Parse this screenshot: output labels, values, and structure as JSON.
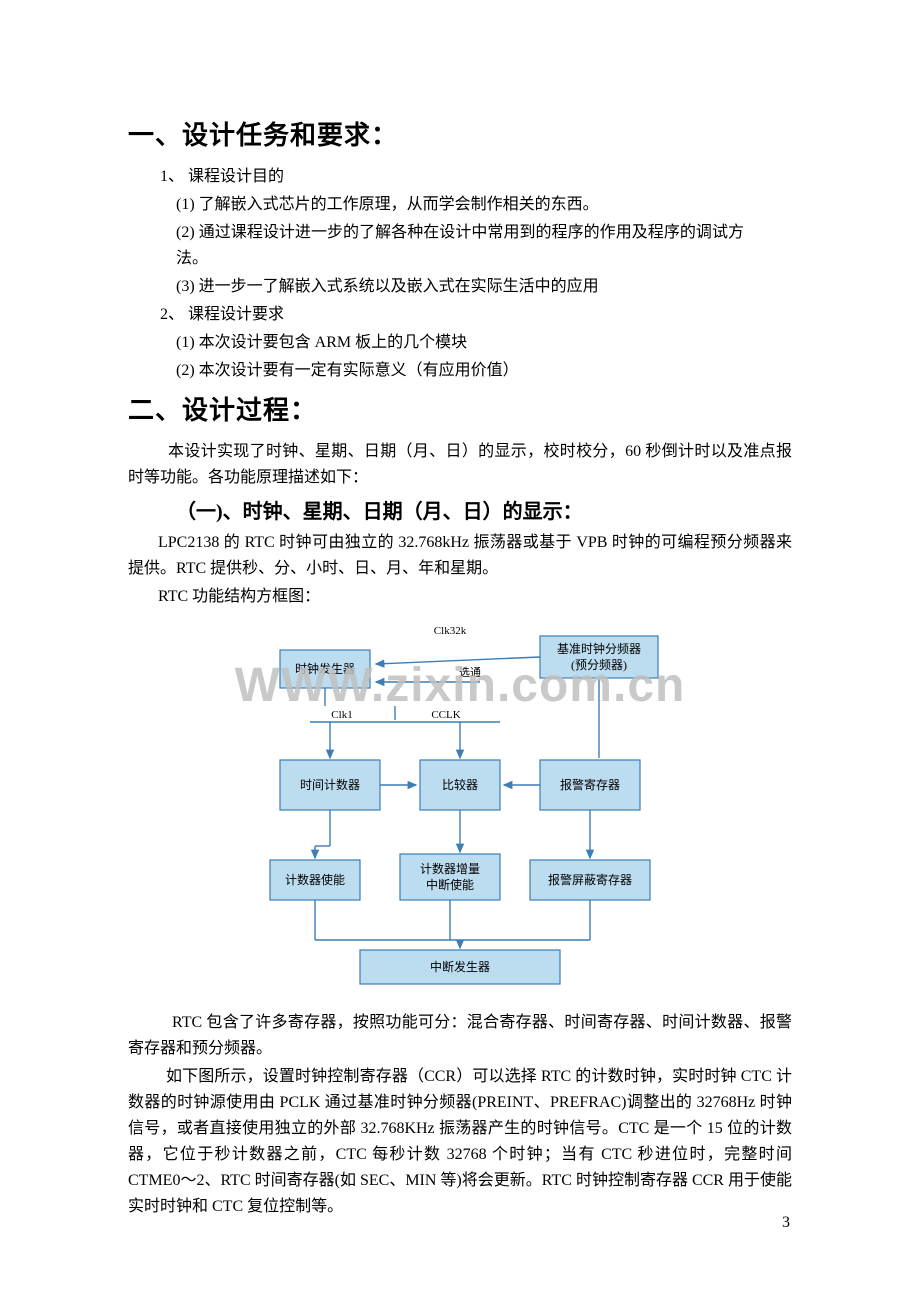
{
  "page_number": "3",
  "headings": {
    "h1a": "一、设计任务和要求：",
    "h1b": "二、设计过程：",
    "h2a": "（一)、时钟、星期、日期（月、日）的显示："
  },
  "section1": {
    "p1": "1、 课程设计目的",
    "p2": "(1) 了解嵌入式芯片的工作原理，从而学会制作相关的东西。",
    "p3": "(2) 通过课程设计进一步的了解各种在设计中常用到的程序的作用及程序的调试方法。",
    "p4": "(3) 进一步一了解嵌入式系统以及嵌入式在实际生活中的应用",
    "p5": "2、 课程设计要求",
    "p6": "(1) 本次设计要包含 ARM 板上的几个模块",
    "p7": "(2) 本次设计要有一定有实际意义（有应用价值）"
  },
  "section2": {
    "p1": "本设计实现了时钟、星期、日期（月、日）的显示，校时校分，60 秒倒计时以及准点报时等功能。各功能原理描述如下：",
    "p2": "LPC2138 的 RTC 时钟可由独立的 32.768kHz 振荡器或基于 VPB 时钟的可编程预分频器来提供。RTC 提供秒、分、小时、日、月、年和星期。",
    "p3": "RTC 功能结构方框图：",
    "p4": "RTC 包含了许多寄存器，按照功能可分：混合寄存器、时间寄存器、时间计数器、报警寄存器和预分频器。",
    "p5": "如下图所示，设置时钟控制寄存器（CCR）可以选择 RTC 的计数时钟，实时时钟 CTC 计数器的时钟源使用由 PCLK 通过基准时钟分频器(PREINT、PREFRAC)调整出的 32768Hz 时钟信号，或者直接使用独立的外部 32.768KHz 振荡器产生的时钟信号。CTC 是一个 15 位的计数器，它位于秒计数器之前，CTC 每秒计数 32768 个时钟；当有 CTC 秒进位时，完整时间 CTME0～2、RTC 时间寄存器(如 SEC、MIN 等)将会更新。RTC 时钟控制寄存器 CCR 用于使能实时时钟和 CTC 复位控制等。"
  },
  "diagram": {
    "labels": {
      "clk32k": "Clk32k",
      "clk1": "Clk1",
      "cclk": "CCLK",
      "xuan_tong": "选通",
      "clock_gen": "时钟发生器",
      "ref_divider1": "基准时钟分频器",
      "ref_divider2": "(预分频器)",
      "time_counter": "时间计数器",
      "comparator": "比较器",
      "alarm_reg": "报警寄存器",
      "counter_enable": "计数器使能",
      "inc_int1": "计数器增量",
      "inc_int2": "中断使能",
      "alarm_mask": "报警屏蔽寄存器",
      "int_gen": "中断发生器"
    },
    "style": {
      "box_fill": "#bcdcf0",
      "box_stroke": "#3b7db4",
      "arrow_stroke": "#3b7db4",
      "text_color": "#000000",
      "font_size": 12,
      "small_font_size": 11
    }
  },
  "watermark": "WWW.zixin.com.cn"
}
